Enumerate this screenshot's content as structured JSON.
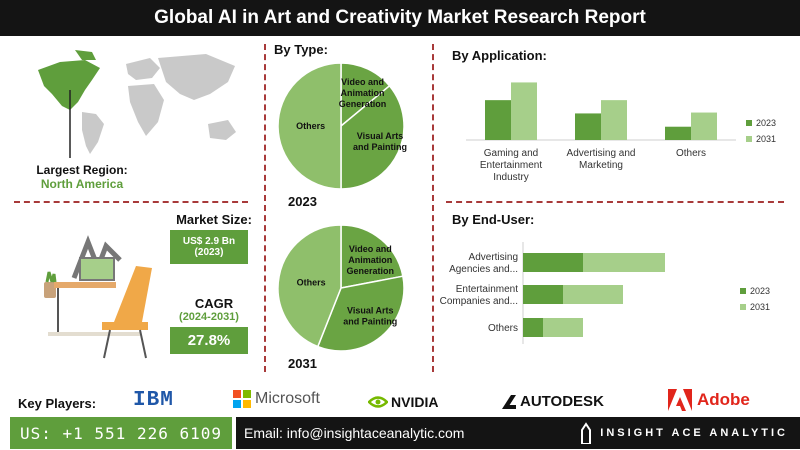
{
  "header": {
    "title": "Global AI in Art and Creativity Market Research Report"
  },
  "region": {
    "label": "Largest Region:",
    "value": "North America"
  },
  "market_size": {
    "label": "Market Size:",
    "value": "US$ 2.9 Bn",
    "year": "(2023)"
  },
  "cagr": {
    "label": "CAGR",
    "period": "(2024-2031)",
    "value": "27.8%"
  },
  "by_type": {
    "title": "By Type:",
    "year_2023": "2023",
    "year_2031": "2031"
  },
  "by_application": {
    "title": "By Application:"
  },
  "by_end_user": {
    "title": "By End-User:"
  },
  "colors": {
    "dark_green": "#5f9e3c",
    "light_green": "#a6cf8a",
    "pie_light": "#8fbf6b",
    "pie_dark": "#6aa443",
    "accent_red": "#a83a3a"
  },
  "key_players": {
    "label": "Key Players:",
    "logos": [
      "IBM",
      "Microsoft",
      "NVIDIA",
      "AUTODESK",
      "Adobe"
    ]
  },
  "footer": {
    "phone": "US: +1 551 226 6109",
    "email": "Email: info@insightaceanalytic.com",
    "brand": "INSIGHT ACE ANALYTIC"
  },
  "chart_data": [
    {
      "type": "pie",
      "title": "By Type: 2023",
      "categories": [
        "Video and Animation Generation",
        "Visual Arts and Painting",
        "Others"
      ],
      "values": [
        14,
        36,
        50
      ]
    },
    {
      "type": "pie",
      "title": "By Type: 2031",
      "categories": [
        "Video and Animation Generation",
        "Visual Arts and Painting",
        "Others"
      ],
      "values": [
        22,
        34,
        44
      ]
    },
    {
      "type": "bar",
      "title": "By Application:",
      "categories": [
        "Gaming and Entertainment Industry",
        "Advertising and Marketing",
        "Others"
      ],
      "series": [
        {
          "name": "2023",
          "values": [
            45,
            30,
            15
          ]
        },
        {
          "name": "2031",
          "values": [
            65,
            45,
            31
          ]
        }
      ],
      "legend": "right"
    },
    {
      "type": "bar",
      "orientation": "horizontal",
      "title": "By End-User:",
      "categories": [
        "Advertising Agencies and...",
        "Entertainment Companies and...",
        "Others"
      ],
      "series": [
        {
          "name": "2023",
          "values": [
            30,
            20,
            10
          ]
        },
        {
          "name": "2031",
          "values": [
            41,
            30,
            20
          ]
        }
      ],
      "legend": "right"
    }
  ]
}
